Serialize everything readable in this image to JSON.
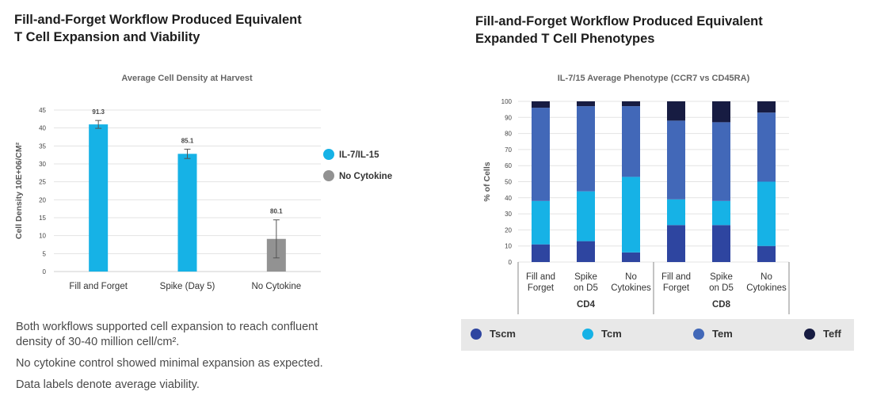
{
  "left": {
    "title_lines": [
      "Fill-and-Forget Workflow Produced Equivalent",
      "T Cell Expansion and Viability"
    ]
  },
  "right": {
    "title_lines": [
      "Fill-and-Forget Workflow Produced Equivalent",
      "Expanded T Cell Phenotypes"
    ]
  },
  "notes": {
    "line1a": "Both workflows supported cell expansion to reach confluent",
    "line1b": "density of 30-40 million cell/cm²",
    "line1b_end": ".",
    "line2": "No cytokine control showed minimal expansion as expected.",
    "line3": "Data labels denote average viability."
  },
  "colors": {
    "il": "#16b2e6",
    "nocyt": "#929292",
    "tscm": "#2e45a0",
    "tcm": "#16b2e6",
    "tem": "#4268b8",
    "teff": "#171c42"
  },
  "chart_data": [
    {
      "type": "bar",
      "title": "Average Cell Density at Harvest",
      "xlabel": "",
      "ylabel": "Cell Density 10E+06/CM²",
      "ylim": [
        0,
        45
      ],
      "yticks": [
        0,
        5,
        10,
        15,
        20,
        25,
        30,
        35,
        40,
        45
      ],
      "grid": true,
      "legend": [
        {
          "name": "IL-7/IL-15",
          "color": "#16b2e6"
        },
        {
          "name": "No Cytokine",
          "color": "#929292"
        }
      ],
      "categories": [
        "Fill and Forget",
        "Spike (Day 5)",
        "No Cytokine"
      ],
      "values": [
        41,
        32.8,
        9.1
      ],
      "errors": [
        1.1,
        1.3,
        5.3
      ],
      "series_of_bar": [
        "IL-7/IL-15",
        "IL-7/IL-15",
        "No Cytokine"
      ],
      "data_labels": [
        "91.3",
        "85.1",
        "80.1"
      ]
    },
    {
      "type": "bar",
      "stacked": true,
      "title": "IL-7/15 Average Phenotype (CCR7 vs CD45RA)",
      "ylabel": "% of Cells",
      "ylim": [
        0,
        100
      ],
      "yticks": [
        0,
        10,
        20,
        30,
        40,
        50,
        60,
        70,
        80,
        90,
        100
      ],
      "grid": true,
      "categories": [
        [
          "Fill and",
          "Forget"
        ],
        [
          "Spike",
          "on D5"
        ],
        [
          "No",
          "Cytokines"
        ],
        [
          "Fill and",
          "Forget"
        ],
        [
          "Spike",
          "on D5"
        ],
        [
          "No",
          "Cytokines"
        ]
      ],
      "groups": [
        {
          "name": "CD4",
          "span": 3
        },
        {
          "name": "CD8",
          "span": 3
        }
      ],
      "series": [
        {
          "name": "Tscm",
          "color": "#2e45a0",
          "values": [
            11,
            13,
            6,
            23,
            23,
            10
          ]
        },
        {
          "name": "Tcm",
          "color": "#16b2e6",
          "values": [
            27,
            31,
            47,
            16,
            15,
            40
          ]
        },
        {
          "name": "Tem",
          "color": "#4268b8",
          "values": [
            58,
            53,
            44,
            49,
            49,
            43
          ]
        },
        {
          "name": "Teff",
          "color": "#171c42",
          "values": [
            4,
            3,
            3,
            12,
            13,
            7
          ]
        }
      ],
      "legend_position": "bottom"
    }
  ]
}
